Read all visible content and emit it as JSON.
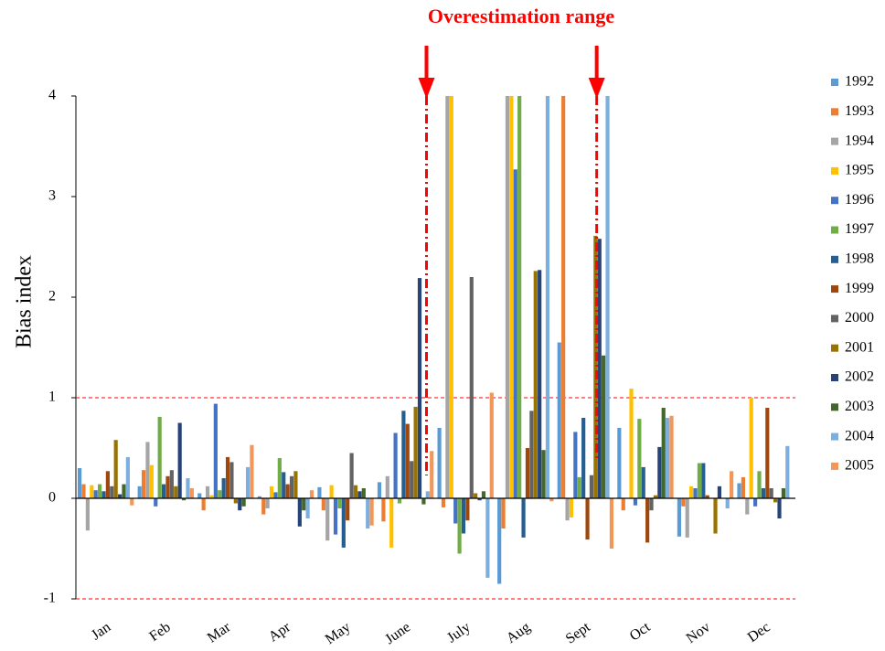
{
  "chart_data": {
    "type": "bar",
    "annotation": "Overestimation range",
    "y_label": "Bias index",
    "categories": [
      "Jan",
      "Feb",
      "Mar",
      "Apr",
      "May",
      "June",
      "July",
      "Aug",
      "Sept",
      "Oct",
      "Nov",
      "Dec"
    ],
    "ylim": [
      -1,
      4
    ],
    "yticks": [
      -1,
      0,
      1,
      2,
      3,
      4
    ],
    "grid": false,
    "reference_lines": [
      1,
      -1
    ],
    "reference_color": "#ff0000",
    "legend": "right",
    "series": [
      {
        "name": "1992",
        "color": "#5b9bd5",
        "values": [
          0.3,
          0.12,
          0.05,
          0.02,
          0.11,
          0.16,
          0.7,
          -0.85,
          1.55,
          0.7,
          -0.38,
          0.15
        ]
      },
      {
        "name": "1993",
        "color": "#ed7d31",
        "values": [
          0.14,
          0.28,
          -0.12,
          -0.16,
          -0.12,
          -0.23,
          -0.09,
          -0.3,
          4,
          -0.12,
          -0.08,
          0.21
        ]
      },
      {
        "name": "1994",
        "color": "#a5a5a5",
        "values": [
          -0.32,
          0.56,
          0.12,
          -0.1,
          -0.42,
          0.22,
          4,
          4,
          -0.22,
          0.0,
          -0.39,
          -0.16
        ]
      },
      {
        "name": "1995",
        "color": "#ffc000",
        "values": [
          0.13,
          0.33,
          0.03,
          0.12,
          0.13,
          -0.49,
          4,
          4,
          -0.19,
          1.09,
          0.12,
          1.0
        ]
      },
      {
        "name": "1996",
        "color": "#4472c4",
        "values": [
          0.08,
          -0.08,
          0.94,
          0.06,
          -0.36,
          0.65,
          -0.25,
          3.27,
          0.66,
          -0.07,
          0.1,
          -0.08
        ]
      },
      {
        "name": "1997",
        "color": "#70ad47",
        "values": [
          0.14,
          0.81,
          0.08,
          0.4,
          -0.1,
          -0.05,
          -0.55,
          4,
          0.21,
          0.79,
          0.35,
          0.27
        ]
      },
      {
        "name": "1998",
        "color": "#255e91",
        "values": [
          0.07,
          0.14,
          0.2,
          0.26,
          -0.49,
          0.87,
          -0.35,
          -0.39,
          0.8,
          0.31,
          0.35,
          0.1
        ]
      },
      {
        "name": "1999",
        "color": "#9e480e",
        "values": [
          0.27,
          0.22,
          0.41,
          0.14,
          -0.22,
          0.74,
          -0.22,
          0.5,
          -0.41,
          -0.44,
          0.03,
          0.9
        ]
      },
      {
        "name": "2000",
        "color": "#636363",
        "values": [
          0.12,
          0.28,
          0.36,
          0.22,
          0.45,
          0.37,
          2.2,
          0.87,
          0.23,
          -0.12,
          0.0,
          0.1
        ]
      },
      {
        "name": "2001",
        "color": "#997300",
        "values": [
          0.58,
          0.12,
          -0.05,
          0.27,
          0.13,
          0.91,
          0.05,
          2.26,
          2.61,
          0.03,
          -0.35,
          -0.04
        ]
      },
      {
        "name": "2002",
        "color": "#264478",
        "values": [
          0.04,
          0.75,
          -0.12,
          -0.28,
          0.07,
          2.19,
          -0.02,
          2.27,
          2.58,
          0.51,
          0.12,
          -0.2
        ]
      },
      {
        "name": "2003",
        "color": "#43682b",
        "values": [
          0.14,
          -0.02,
          -0.08,
          -0.12,
          0.1,
          -0.06,
          0.07,
          0.48,
          1.42,
          0.9,
          0.0,
          0.1
        ]
      },
      {
        "name": "2004",
        "color": "#7cafdd",
        "values": [
          0.41,
          0.2,
          0.31,
          -0.2,
          -0.3,
          0.07,
          -0.79,
          4,
          4,
          0.8,
          -0.1,
          0.52
        ]
      },
      {
        "name": "2005",
        "color": "#f1975a",
        "values": [
          -0.07,
          0.1,
          0.53,
          0.08,
          -0.27,
          0.47,
          1.05,
          -0.03,
          -0.5,
          0.82,
          0.27,
          0.0
        ]
      }
    ]
  }
}
